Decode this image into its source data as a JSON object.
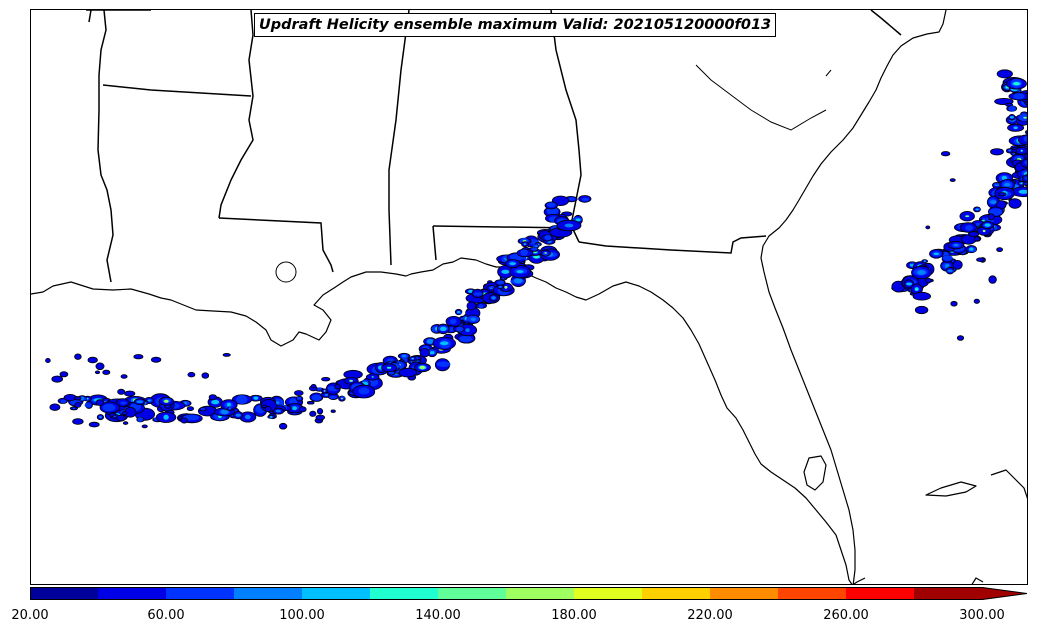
{
  "title": "Updraft Helicity ensemble maximum Valid: 202105120000f013",
  "colors": {
    "levels": [
      "#00009b",
      "#0000e6",
      "#0033ff",
      "#0080ff",
      "#00c0ff",
      "#20ffd0",
      "#60ff99",
      "#a0ff60",
      "#e0ff20",
      "#ffd000",
      "#ff8c00",
      "#ff4500",
      "#ff0000",
      "#a00000"
    ]
  },
  "colorbar": {
    "min": 20,
    "max": 300,
    "step": 20,
    "extend": "max",
    "tick_labels": [
      "20.00",
      "60.00",
      "100.00",
      "140.00",
      "180.00",
      "220.00",
      "260.00",
      "300.00"
    ]
  }
}
